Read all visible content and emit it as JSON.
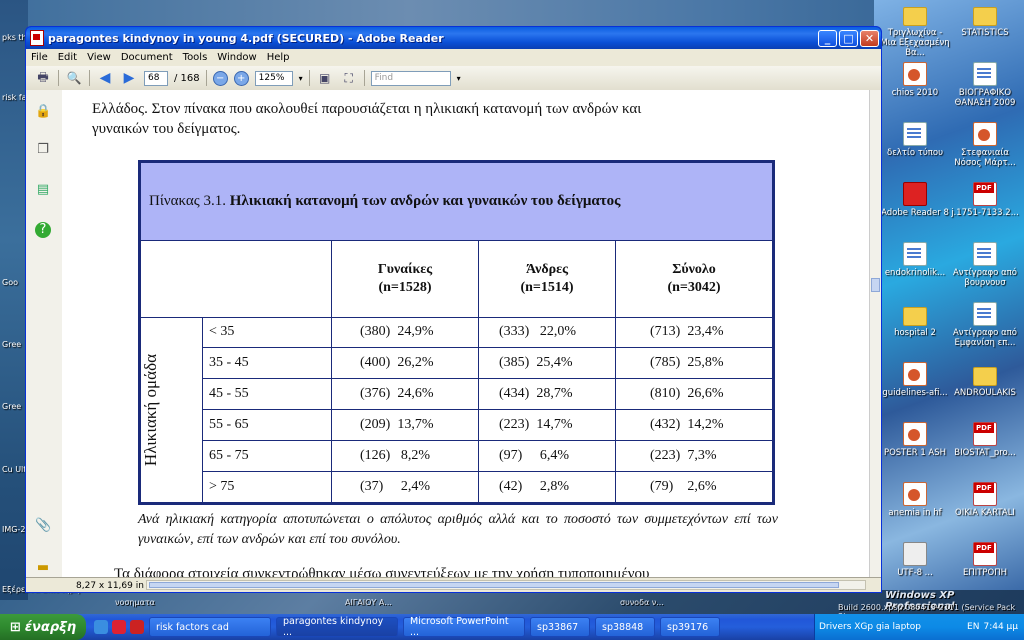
{
  "desktop": {
    "right_icons": [
      {
        "label": "Τριγλωχίνα - Μια Εξεχασμένη Βα...",
        "type": "folder"
      },
      {
        "label": "STATISTICS",
        "type": "folder"
      },
      {
        "label": "chios 2010",
        "type": "ppt"
      },
      {
        "label": "ΒΙΟΓΡΑΦΙΚΟ ΘΑΝΑΣΗ 2009",
        "type": "doc"
      },
      {
        "label": "δελτίο τύπου",
        "type": "doc"
      },
      {
        "label": "Στεφανιαία Νόσος Μάρτ...",
        "type": "ppt"
      },
      {
        "label": "Adobe Reader 8",
        "type": "pdfbig"
      },
      {
        "label": "j.1751-7133.2...",
        "type": "pdf"
      },
      {
        "label": "endokrinolik...",
        "type": "doc"
      },
      {
        "label": "Αντίγραφο από βουρνουσ",
        "type": "doc"
      },
      {
        "label": "hospital 2",
        "type": "folder"
      },
      {
        "label": "Αντίγραφο από Εμφανίση επ...",
        "type": "doc"
      },
      {
        "label": "guidelines-afi...",
        "type": "ppt"
      },
      {
        "label": "ANDROULAKIS",
        "type": "folder"
      },
      {
        "label": "POSTER 1 ASH",
        "type": "ppt"
      },
      {
        "label": "BIOSTAT_pro...",
        "type": "pdf"
      },
      {
        "label": "anemia in hf",
        "type": "ppt"
      },
      {
        "label": "OIKIA KARTALI",
        "type": "pdf"
      },
      {
        "label": "UTF-8 ...",
        "type": "exe"
      },
      {
        "label": "ΕΠΙΤΡΟΠΗ",
        "type": "pdf"
      }
    ],
    "left_labels": [
      "pks th",
      "risk fa",
      "Goo",
      "Gree",
      "Gree",
      "Cu Ultima",
      "IMG-2",
      "Εξέρευνα Επιστήμη"
    ],
    "bottom_labels": [
      "νοσηματα",
      "ΑΙΓΑΙΟΥ Α...",
      "συνοδα ν..."
    ],
    "os_watermark": "Windows XP Professional",
    "build_text": "Build 2600.xpsp.080413-2111 (Service Pack 3)"
  },
  "window": {
    "title": "paragontes kindynoy in young 4.pdf (SECURED) - Adobe Reader",
    "menu": [
      "File",
      "Edit",
      "View",
      "Document",
      "Tools",
      "Window",
      "Help"
    ],
    "page_current": "68",
    "page_total": "/ 168",
    "zoom": "125%",
    "find_placeholder": "Find",
    "page_size": "8,27 x 11,69 in"
  },
  "document": {
    "intro_line1": "Ελλάδος. Στον πίνακα που ακολουθεί παρουσιάζεται η ηλικιακή κατανομή των ανδρών και",
    "intro_line2": "γυναικών του δείγματος.",
    "table_caption_prefix": "Πίνακας 3.1.",
    "table_caption_bold": "Ηλικιακή κατανομή των ανδρών και γυναικών του δείγματος",
    "row_group_label": "Ηλικιακή ομάδα",
    "columns": [
      {
        "name": "Γυναίκες",
        "n": "(n=1528)"
      },
      {
        "name": "Άνδρες",
        "n": "(n=1514)"
      },
      {
        "name": "Σύνολο",
        "n": "(n=3042)"
      }
    ],
    "rows": [
      {
        "age": "< 35",
        "women": "(380)  24,9%",
        "men": "(333)   22,0%",
        "total": "(713)  23,4%"
      },
      {
        "age": "35 - 45",
        "women": "(400)  26,2%",
        "men": "(385)  25,4%",
        "total": "(785)  25,8%"
      },
      {
        "age": "45 - 55",
        "women": "(376)  24,6%",
        "men": "(434)  28,7%",
        "total": "(810)  26,6%"
      },
      {
        "age": "55 - 65",
        "women": "(209)  13,7%",
        "men": "(223)  14,7%",
        "total": "(432)  14,2%"
      },
      {
        "age": "65 - 75",
        "women": "(126)   8,2%",
        "men": "(97)     6,4%",
        "total": "(223)  7,3%"
      },
      {
        "age": "> 75",
        "women": "(37)     2,4%",
        "men": "(42)     2,8%",
        "total": "(79)    2,6%"
      }
    ],
    "note": "Ανά ηλικιακή κατηγορία αποτυπώνεται ο απόλυτος αριθμός αλλά και το ποσοστό των συμμετεχόντων επί των γυναικών, επί των ανδρών και επί του συνόλου.",
    "cut_line": "Τα διάφορα στοιχεία συγκεντρώθηκαν μέσω συνεντεύξεων με την χρήση τυποποιημένου"
  },
  "taskbar": {
    "start_label": "έναρξη",
    "tasks": [
      "risk factors cad",
      "paragontes kindynoy ...",
      "Microsoft PowerPoint ..."
    ],
    "tray_items": [
      "Drivers XGp gia laptop",
      "sp33867",
      "sp38848",
      "sp39176"
    ],
    "language": "EN",
    "clock": "7:44 μμ"
  },
  "colors": {
    "table_header_bg": "#aeb4f7",
    "table_border": "#1a2a7a",
    "taskbar": "#245edb",
    "start": "#2f8a2f"
  }
}
